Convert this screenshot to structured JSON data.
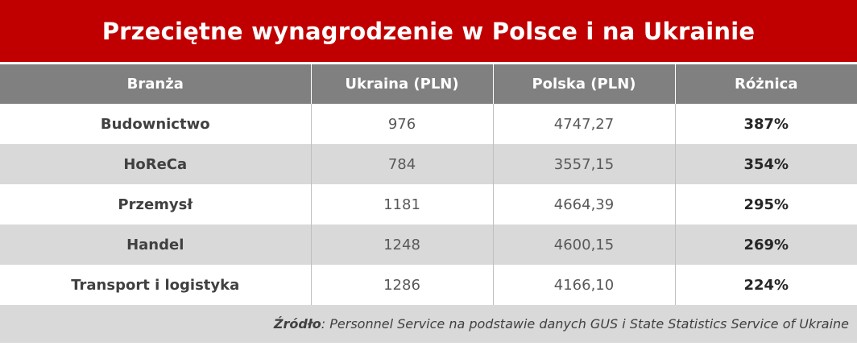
{
  "title": "Przeciętne wynagrodzenie w Polsce i na Ukrainie",
  "colors": {
    "title_bg": "#c00000",
    "header_bg": "#808080",
    "stripe": "#d9d9d9"
  },
  "chart_data": {
    "type": "table",
    "title": "Przeciętne wynagrodzenie w Polsce i na Ukrainie",
    "columns": [
      "Branża",
      "Ukraina (PLN)",
      "Polska (PLN)",
      "Różnica"
    ],
    "rows": [
      [
        "Budownictwo",
        "976",
        "4747,27",
        "387%"
      ],
      [
        "HoReCa",
        "784",
        "3557,15",
        "354%"
      ],
      [
        "Przemysł",
        "1181",
        "4664,39",
        "295%"
      ],
      [
        "Handel",
        "1248",
        "4600,15",
        "269%"
      ],
      [
        "Transport i logistyka",
        "1286",
        "4166,10",
        "224%"
      ]
    ]
  },
  "source": {
    "label": "Źródło",
    "text": ": Personnel Service na podstawie danych GUS i State Statistics Service of Ukraine"
  }
}
